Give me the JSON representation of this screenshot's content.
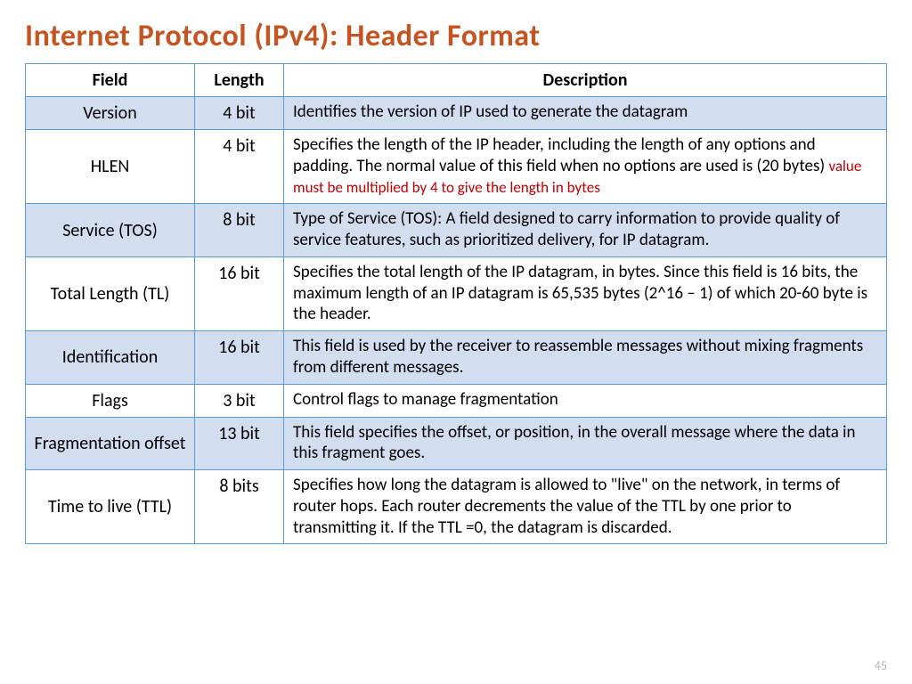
{
  "title": "Internet Protocol (IPv4): Header Format",
  "title_color": "#c45522",
  "page_number": "45",
  "table": {
    "border_color": "#5b9bd5",
    "header_bg": "#ffffff",
    "shade_bg": "#d2deef",
    "plain_bg": "#ffffff",
    "header_fontsize": 20,
    "body_fontsize": 19,
    "field_fontsize": 20,
    "note_color": "#c00000",
    "columns": [
      "Field",
      "Length",
      "Description"
    ],
    "rows": [
      {
        "field": "Version",
        "length": "4 bit",
        "desc": "Identifies the version of IP used to generate the datagram",
        "shaded": true
      },
      {
        "field": "HLEN",
        "length": "4 bit",
        "desc": "Specifies the length of the IP header, including the length of any options and padding. The normal value of this field when no options are used is (20 bytes) ",
        "note": "value must be multiplied by 4 to give the length in bytes",
        "shaded": false
      },
      {
        "field": "Service (TOS)",
        "length": "8 bit",
        "desc": "Type of Service (TOS): A field designed to carry information to provide quality of service features, such as prioritized delivery, for IP datagram.",
        "shaded": true
      },
      {
        "field": "Total Length (TL)",
        "length": "16 bit",
        "desc": "Specifies the total length of the IP datagram, in bytes. Since this field is 16 bits, the maximum length of an IP datagram is 65,535 bytes (2^16 – 1) of which 20-60 byte is the header.",
        "shaded": false
      },
      {
        "field": "Identification",
        "length": "16 bit",
        "desc": "This field is used by the receiver to reassemble messages without mixing fragments from different messages.",
        "shaded": true
      },
      {
        "field": "Flags",
        "length": "3 bit",
        "desc": "Control flags to manage fragmentation",
        "shaded": false
      },
      {
        "field": "Fragmentation offset",
        "length": "13 bit",
        "desc": "This field specifies the offset, or position, in the overall message where the data in this fragment goes.",
        "shaded": true
      },
      {
        "field": "Time to live (TTL)",
        "length": "8 bits",
        "desc": "Specifies how long the datagram is allowed to \"live\" on the network, in terms of router hops. Each router decrements the value of the TTL by one prior to transmitting it. If the TTL =0, the datagram is discarded.",
        "shaded": false
      }
    ]
  }
}
